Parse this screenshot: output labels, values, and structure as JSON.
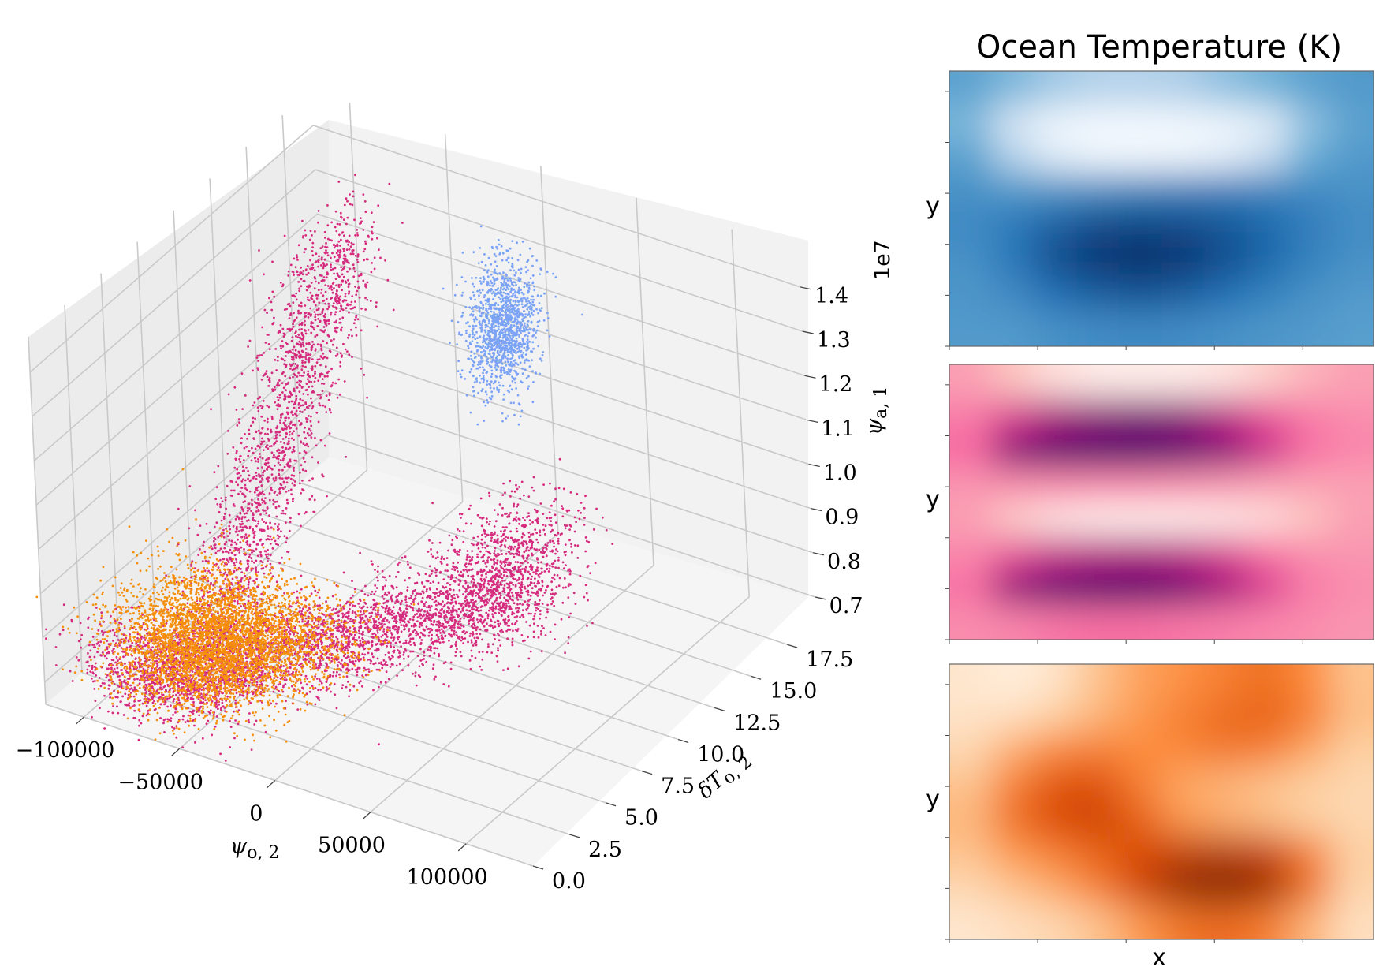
{
  "colors": {
    "pink": "#D62A7E",
    "orange": "#F58F0B",
    "blue": "#7BA3F5",
    "pane_back": "#ececec",
    "pane_side": "#f3f3f3",
    "pane_floor": "#f6f6f6"
  },
  "chart_data": [
    {
      "type": "scatter",
      "projection": "3d",
      "xlabel": "ψo,2",
      "ylabel": "δTo,2",
      "zlabel": "ψa,1",
      "z_offset_label": "1e7",
      "x_ticks": [
        "−100000",
        "−50000",
        "0",
        "50000",
        "100000"
      ],
      "x_tick_values": [
        -100000,
        -50000,
        0,
        50000,
        100000
      ],
      "y_ticks": [
        "0.0",
        "2.5",
        "5.0",
        "7.5",
        "10.0",
        "12.5",
        "15.0",
        "17.5"
      ],
      "y_tick_values": [
        0,
        2.5,
        5,
        7.5,
        10,
        12.5,
        15,
        17.5
      ],
      "z_ticks": [
        "0.7",
        "0.8",
        "0.9",
        "1.0",
        "1.1",
        "1.2",
        "1.3",
        "1.4"
      ],
      "z_tick_values": [
        0.7,
        0.8,
        0.9,
        1.0,
        1.1,
        1.2,
        1.3,
        1.4
      ],
      "xlim": [
        -120000,
        135000
      ],
      "ylim": [
        0,
        19.5
      ],
      "zlim": [
        0.65,
        1.48
      ],
      "grid": true,
      "series": [
        {
          "color": "#D62A7E",
          "clusters": [
            {
              "kind": "ridge",
              "from": [
                -60000,
                3,
                0.72
              ],
              "to": [
                -62000,
                14,
                1.4
              ],
              "spread": [
                9000,
                1.0,
                0.045
              ],
              "count": 2200
            },
            {
              "kind": "ridge",
              "from": [
                -55000,
                3,
                0.74
              ],
              "to": [
                92000,
                5,
                1.05
              ],
              "spread": [
                12000,
                1.2,
                0.04
              ],
              "count": 2600
            },
            {
              "kind": "blob",
              "center": [
                90000,
                5,
                1.12
              ],
              "spread": [
                13000,
                1.8,
                0.06
              ],
              "count": 900
            },
            {
              "kind": "blob",
              "center": [
                -70000,
                1.5,
                0.75
              ],
              "spread": [
                18000,
                1.2,
                0.04
              ],
              "count": 1100
            }
          ]
        },
        {
          "color": "#F58F0B",
          "clusters": [
            {
              "kind": "blob",
              "center": [
                -58000,
                3,
                0.8
              ],
              "spread": [
                20000,
                1.8,
                0.055
              ],
              "count": 3400
            },
            {
              "kind": "ridge",
              "from": [
                -50000,
                3,
                0.78
              ],
              "to": [
                -5000,
                5,
                0.82
              ],
              "spread": [
                12000,
                1.2,
                0.04
              ],
              "count": 900
            }
          ]
        },
        {
          "color": "#7BA3F5",
          "clusters": [
            {
              "kind": "blob",
              "center": [
                0,
                16.5,
                1.2
              ],
              "spread": [
                6000,
                0.9,
                0.07
              ],
              "count": 1300
            }
          ]
        }
      ]
    },
    {
      "type": "heatmap",
      "title": "Ocean Temperature (K)",
      "xlabel": "",
      "ylabel": "y",
      "colormap": "Blues",
      "stops": [
        "#f7fbff",
        "#c6dbef",
        "#6baed6",
        "#2171b5",
        "#08306b"
      ],
      "grid_values": [
        [
          0.55,
          0.45,
          0.35,
          0.3,
          0.3,
          0.32,
          0.4,
          0.48,
          0.55,
          0.58
        ],
        [
          0.45,
          0.18,
          0.05,
          0.02,
          0.02,
          0.03,
          0.05,
          0.12,
          0.4,
          0.55
        ],
        [
          0.55,
          0.3,
          0.12,
          0.05,
          0.04,
          0.05,
          0.1,
          0.25,
          0.5,
          0.58
        ],
        [
          0.62,
          0.6,
          0.62,
          0.65,
          0.68,
          0.7,
          0.7,
          0.68,
          0.65,
          0.62
        ],
        [
          0.65,
          0.72,
          0.82,
          0.9,
          0.92,
          0.9,
          0.85,
          0.78,
          0.7,
          0.64
        ],
        [
          0.62,
          0.72,
          0.88,
          0.97,
          1.0,
          0.97,
          0.88,
          0.78,
          0.68,
          0.62
        ],
        [
          0.6,
          0.65,
          0.75,
          0.82,
          0.85,
          0.82,
          0.75,
          0.68,
          0.62,
          0.58
        ],
        [
          0.58,
          0.58,
          0.62,
          0.64,
          0.65,
          0.64,
          0.62,
          0.6,
          0.58,
          0.56
        ]
      ]
    },
    {
      "type": "heatmap",
      "title": "",
      "xlabel": "",
      "ylabel": "y",
      "colormap": "RdPu",
      "stops": [
        "#fff7f3",
        "#fcc5c0",
        "#f768a1",
        "#ae017e",
        "#49006a"
      ],
      "grid_values": [
        [
          0.35,
          0.25,
          0.12,
          0.06,
          0.05,
          0.06,
          0.1,
          0.2,
          0.3,
          0.35
        ],
        [
          0.45,
          0.6,
          0.75,
          0.82,
          0.86,
          0.82,
          0.7,
          0.55,
          0.45,
          0.4
        ],
        [
          0.5,
          0.85,
          0.97,
          1.0,
          1.0,
          0.95,
          0.85,
          0.65,
          0.48,
          0.42
        ],
        [
          0.38,
          0.4,
          0.42,
          0.42,
          0.42,
          0.4,
          0.38,
          0.35,
          0.34,
          0.35
        ],
        [
          0.35,
          0.2,
          0.08,
          0.03,
          0.02,
          0.03,
          0.06,
          0.12,
          0.25,
          0.35
        ],
        [
          0.42,
          0.55,
          0.65,
          0.7,
          0.72,
          0.68,
          0.6,
          0.48,
          0.4,
          0.38
        ],
        [
          0.48,
          0.82,
          0.95,
          1.0,
          1.0,
          0.92,
          0.78,
          0.6,
          0.45,
          0.4
        ],
        [
          0.4,
          0.42,
          0.46,
          0.48,
          0.48,
          0.46,
          0.44,
          0.42,
          0.4,
          0.38
        ]
      ]
    },
    {
      "type": "heatmap",
      "title": "",
      "xlabel": "x",
      "ylabel": "y",
      "colormap": "Oranges",
      "stops": [
        "#fff5eb",
        "#fdd0a2",
        "#fd8d3c",
        "#d94801",
        "#7f2704"
      ],
      "grid_values": [
        [
          0.1,
          0.05,
          0.12,
          0.3,
          0.42,
          0.48,
          0.55,
          0.6,
          0.5,
          0.3
        ],
        [
          0.12,
          0.15,
          0.25,
          0.35,
          0.45,
          0.55,
          0.62,
          0.65,
          0.55,
          0.32
        ],
        [
          0.2,
          0.38,
          0.52,
          0.55,
          0.5,
          0.52,
          0.58,
          0.55,
          0.4,
          0.25
        ],
        [
          0.3,
          0.55,
          0.7,
          0.72,
          0.55,
          0.4,
          0.35,
          0.3,
          0.25,
          0.2
        ],
        [
          0.35,
          0.6,
          0.75,
          0.78,
          0.65,
          0.45,
          0.38,
          0.32,
          0.25,
          0.2
        ],
        [
          0.3,
          0.45,
          0.55,
          0.65,
          0.75,
          0.82,
          0.85,
          0.8,
          0.55,
          0.25
        ],
        [
          0.2,
          0.3,
          0.4,
          0.55,
          0.78,
          0.95,
          1.0,
          0.92,
          0.6,
          0.22
        ],
        [
          0.1,
          0.15,
          0.2,
          0.3,
          0.45,
          0.58,
          0.62,
          0.55,
          0.35,
          0.15
        ]
      ]
    }
  ]
}
